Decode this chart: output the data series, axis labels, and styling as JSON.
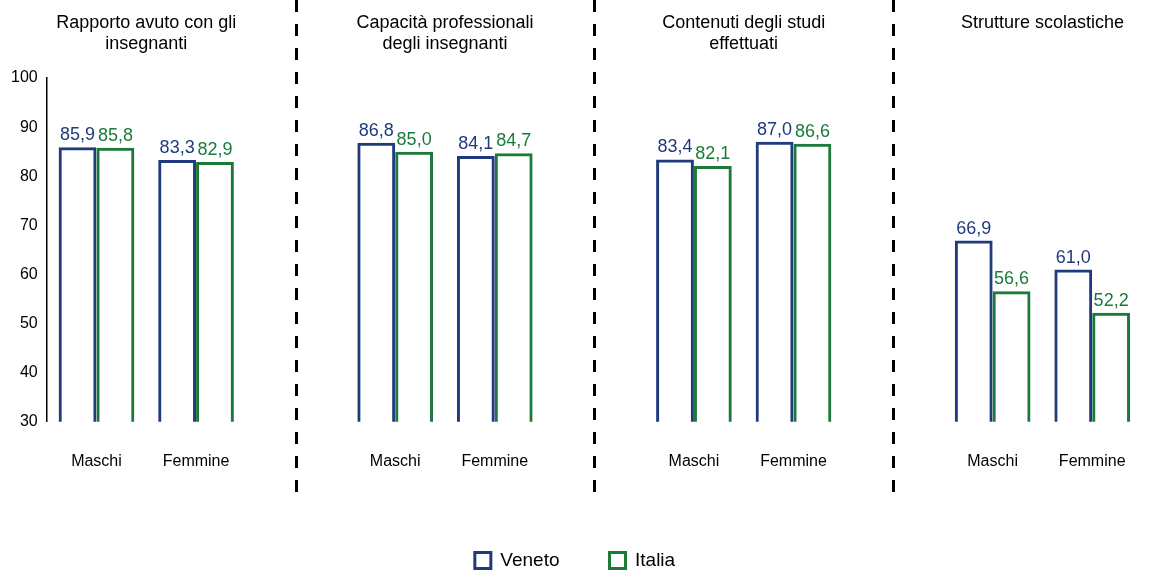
{
  "chart_data": {
    "type": "bar",
    "categories": [
      "Maschi",
      "Femmine",
      null,
      "Maschi",
      "Femmine",
      null,
      "Maschi",
      "Femmine",
      null,
      "Maschi",
      "Femmine"
    ],
    "series": [
      {
        "name": "Veneto",
        "color": "#1f3a7d",
        "values": [
          85.9,
          83.3,
          null,
          86.8,
          84.1,
          null,
          83.4,
          87.0,
          null,
          66.9,
          61.0
        ],
        "value_labels": [
          "85,9",
          "83,3",
          null,
          "86,8",
          "84,1",
          null,
          "83,4",
          "87,0",
          null,
          "66,9",
          "61,0"
        ]
      },
      {
        "name": "Italia",
        "color": "#1b7a3a",
        "values": [
          85.8,
          82.9,
          null,
          85.0,
          84.7,
          null,
          82.1,
          86.6,
          null,
          56.6,
          52.2
        ],
        "value_labels": [
          "85,8",
          "82,9",
          null,
          "85,0",
          "84,7",
          null,
          "82,1",
          "86,6",
          null,
          "56,6",
          "52,2"
        ]
      }
    ],
    "ylim": [
      30,
      100
    ],
    "yticks": [
      30,
      40,
      50,
      60,
      70,
      80,
      90,
      100
    ],
    "grid": false,
    "legend": "bottom",
    "annotations": [
      "Rapporto avuto con gli insegnanti",
      "Capacità professionali degli insegnanti",
      "Contenuti degli studi effettuati",
      "Strutture scolastiche"
    ]
  }
}
